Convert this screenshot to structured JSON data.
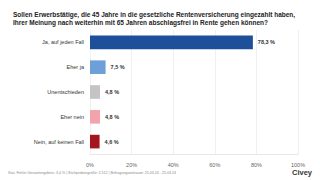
{
  "chart_data": {
    "type": "bar",
    "orientation": "horizontal",
    "title": "Sollen Erwerbstätige, die 45 Jahre in die gesetzliche Rentenversicherung eingezahlt haben, Ihrer Meinung nach weiterhin mit 65 Jahren abschlagsfrei in Rente gehen können?",
    "categories": [
      "Ja, auf jeden Fall",
      "Eher ja",
      "Unentschieden",
      "Eher nein",
      "Nein, auf keinen Fall"
    ],
    "values": [
      78.3,
      7.5,
      4.8,
      4.8,
      4.6
    ],
    "value_labels": [
      "78,3 %",
      "7,5 %",
      "4,8 %",
      "4,8 %",
      "4,6 %"
    ],
    "colors": [
      "#1d4f9a",
      "#6d9fd9",
      "#c4c4c4",
      "#f2a3ab",
      "#a3161e"
    ],
    "data_labels": true,
    "xlim": [
      0,
      100
    ],
    "xticks": [
      {
        "value": 0,
        "label": "0%"
      },
      {
        "value": 20,
        "label": "20%"
      },
      {
        "value": 40,
        "label": "40%"
      },
      {
        "value": 60,
        "label": "60%"
      },
      {
        "value": 80,
        "label": "80%"
      },
      {
        "value": 100,
        "label": "100%"
      }
    ],
    "grid": true,
    "footnote": "Stat. Fehler Gesamtergebnis: 3,4 % | Stichprobengröße: 2.512 | Befragungszeitraum: 25.03.24 - 25.03.24",
    "brand": "Civey"
  }
}
